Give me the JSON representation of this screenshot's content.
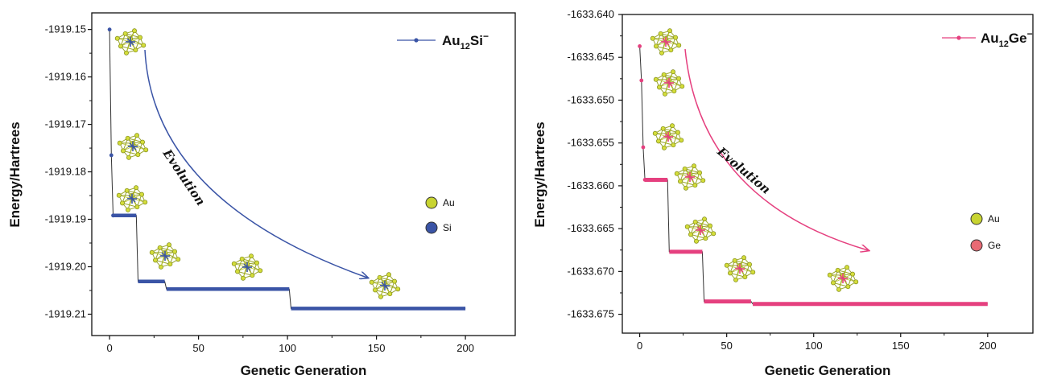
{
  "chart_data": [
    {
      "type": "line",
      "series": [
        {
          "name": "Au12Si−",
          "color": "#3a54a6",
          "points": [
            [
              0,
              -1919.15
            ],
            [
              1,
              -1919.1765
            ],
            [
              2,
              -1919.1892
            ],
            [
              15,
              -1919.1892
            ],
            [
              16,
              -1919.2031
            ],
            [
              31,
              -1919.2031
            ],
            [
              32,
              -1919.2047
            ],
            [
              101,
              -1919.2047
            ],
            [
              102,
              -1919.2088
            ],
            [
              200,
              -1919.2088
            ]
          ]
        }
      ],
      "legend": {
        "base": "Au",
        "sub": "12",
        "rest": "Si",
        "sup": "−"
      },
      "elements": [
        {
          "label": "Au",
          "color": "#c8d431"
        },
        {
          "label": "Si",
          "color": "#3a54a6"
        }
      ],
      "annotation": "Evolution",
      "xlabel": "Genetic Generation",
      "ylabel": "Energy/Hartrees",
      "xlim": [
        -10,
        228
      ],
      "ylim": [
        -1919.2145,
        -1919.1465
      ],
      "xticks": [
        "0",
        "50",
        "100",
        "150",
        "200"
      ],
      "yticks": [
        "-1919.15",
        "-1919.16",
        "-1919.17",
        "-1919.18",
        "-1919.19",
        "-1919.20",
        "-1919.21"
      ],
      "grid": false,
      "legend_position": "top-right"
    },
    {
      "type": "line",
      "series": [
        {
          "name": "Au12Ge−",
          "color": "#e5407f",
          "points": [
            [
              0,
              -1633.6437
            ],
            [
              1,
              -1633.6477
            ],
            [
              2,
              -1633.6555
            ],
            [
              3,
              -1633.6593
            ],
            [
              16,
              -1633.6593
            ],
            [
              17,
              -1633.6677
            ],
            [
              36,
              -1633.6677
            ],
            [
              37,
              -1633.6735
            ],
            [
              64,
              -1633.6735
            ],
            [
              65,
              -1633.6738
            ],
            [
              200,
              -1633.6738
            ]
          ]
        }
      ],
      "legend": {
        "base": "Au",
        "sub": "12",
        "rest": "Ge",
        "sup": "−"
      },
      "elements": [
        {
          "label": "Au",
          "color": "#c8d431"
        },
        {
          "label": "Ge",
          "color": "#e86a74"
        }
      ],
      "annotation": "Evolution",
      "xlabel": "Genetic Generation",
      "ylabel": "Energy/Hartrees",
      "xlim": [
        -10,
        226
      ],
      "ylim": [
        -1633.6772,
        -1633.64
      ],
      "xticks": [
        "0",
        "50",
        "100",
        "150",
        "200"
      ],
      "yticks": [
        "-1633.640",
        "-1633.645",
        "-1633.650",
        "-1633.655",
        "-1633.660",
        "-1633.665",
        "-1633.670",
        "-1633.675"
      ],
      "grid": false,
      "legend_position": "top-right"
    }
  ]
}
